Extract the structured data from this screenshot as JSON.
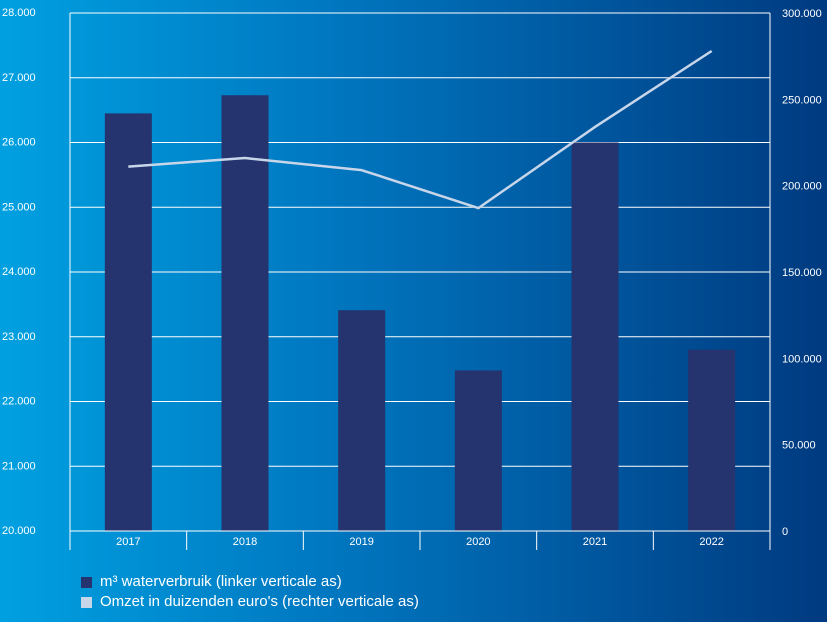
{
  "colors": {
    "bar": "#25346e",
    "line": "#c8d6ea",
    "grid": "#ffffff",
    "axis": "#ffffff"
  },
  "chart_data": {
    "type": "bar",
    "categories": [
      "2017",
      "2018",
      "2019",
      "2020",
      "2021",
      "2022"
    ],
    "left_axis": {
      "ylim": [
        20000,
        28000
      ],
      "ticks": [
        "20.000",
        "21.000",
        "22.000",
        "23.000",
        "24.000",
        "25.000",
        "26.000",
        "27.000",
        "28.000"
      ]
    },
    "right_axis": {
      "ylim": [
        0,
        300000
      ],
      "ticks": [
        "0",
        "50.000",
        "100.000",
        "150.000",
        "200.000",
        "250.000",
        "300.000"
      ]
    },
    "grid": true,
    "legend_position": "bottom-left",
    "series": [
      {
        "name": "m³ waterverbruik (linker verticale as)",
        "type": "bar",
        "axis": "left",
        "values": [
          26450,
          26730,
          23410,
          22480,
          26000,
          22800
        ]
      },
      {
        "name": "Omzet in duizenden euro's (rechter verticale as)",
        "type": "line",
        "axis": "right",
        "values": [
          211000,
          216000,
          209000,
          187000,
          234000,
          278000
        ]
      }
    ]
  }
}
